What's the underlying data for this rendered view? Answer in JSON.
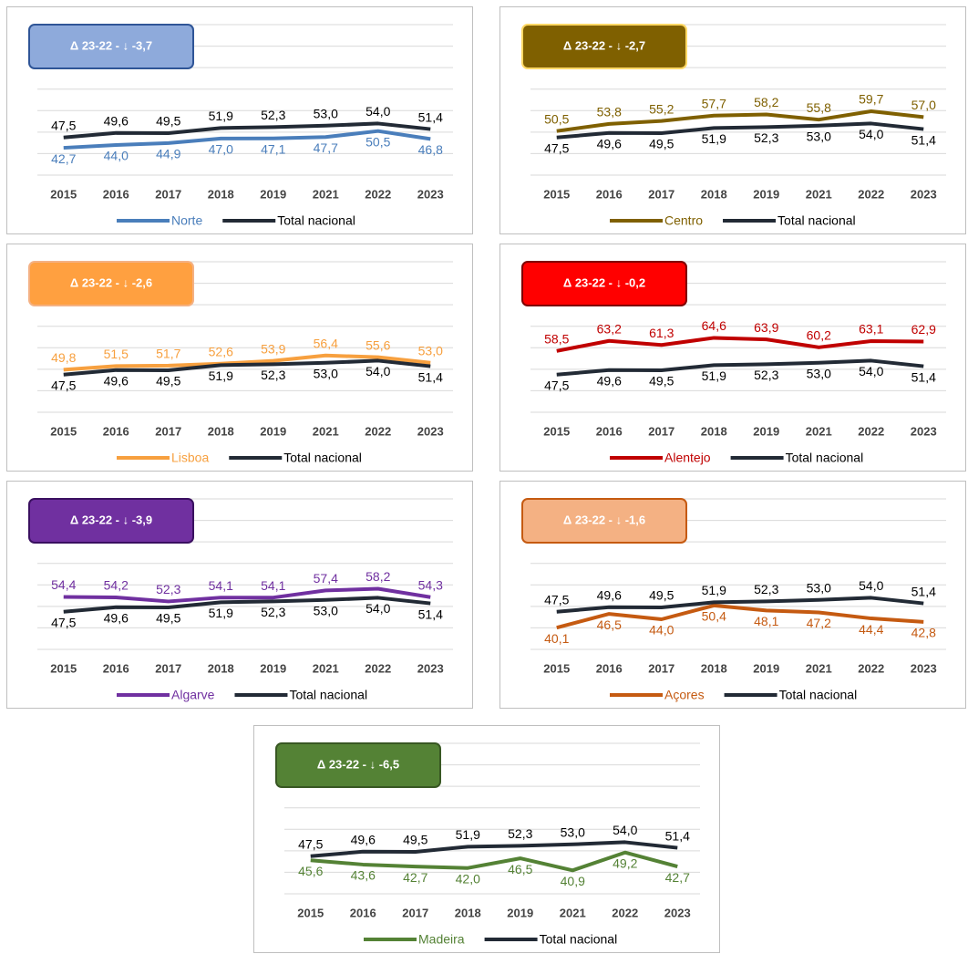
{
  "chart_data": [
    {
      "type": "line",
      "badge": "Δ 23-22 - ↓ -3,7",
      "badge_color": "#8eaadb",
      "badge_border": "#2f5597",
      "categories": [
        "2015",
        "2016",
        "2017",
        "2018",
        "2019",
        "2021",
        "2022",
        "2023"
      ],
      "series": [
        {
          "name": "Norte",
          "color": "#4a7ebb",
          "values": [
            42.7,
            44.0,
            44.9,
            47.0,
            47.1,
            47.7,
            50.5,
            46.8
          ],
          "value_labels": [
            "42,7",
            "44,0",
            "44,9",
            "47,0",
            "47,1",
            "47,7",
            "50,5",
            "46,8"
          ]
        },
        {
          "name": "Total nacional",
          "color": "#222a35",
          "values": [
            47.5,
            49.6,
            49.5,
            51.9,
            52.3,
            53.0,
            54.0,
            51.4
          ],
          "value_labels": [
            "47,5",
            "49,6",
            "49,5",
            "51,9",
            "52,3",
            "53,0",
            "54,0",
            "51,4"
          ]
        }
      ],
      "ylim": [
        30,
        100
      ],
      "yticks": [
        30,
        40,
        50,
        60,
        70,
        80,
        90,
        100
      ],
      "grid": true
    },
    {
      "type": "line",
      "badge": "Δ 23-22 - ↓ -2,7",
      "badge_color": "#7f6000",
      "badge_border": "#ffd966",
      "categories": [
        "2015",
        "2016",
        "2017",
        "2018",
        "2019",
        "2021",
        "2022",
        "2023"
      ],
      "series": [
        {
          "name": "Centro",
          "color": "#7f6000",
          "values": [
            50.5,
            53.8,
            55.2,
            57.7,
            58.2,
            55.8,
            59.7,
            57.0
          ],
          "value_labels": [
            "50,5",
            "53,8",
            "55,2",
            "57,7",
            "58,2",
            "55,8",
            "59,7",
            "57,0"
          ]
        },
        {
          "name": "Total nacional",
          "color": "#222a35",
          "values": [
            47.5,
            49.6,
            49.5,
            51.9,
            52.3,
            53.0,
            54.0,
            51.4
          ],
          "value_labels": [
            "47,5",
            "49,6",
            "49,5",
            "51,9",
            "52,3",
            "53,0",
            "54,0",
            "51,4"
          ]
        }
      ],
      "ylim": [
        30,
        100
      ],
      "yticks": [
        30,
        40,
        50,
        60,
        70,
        80,
        90,
        100
      ],
      "grid": true
    },
    {
      "type": "line",
      "badge": "Δ 23-22 - ↓ -2,6",
      "badge_color": "#ffa040",
      "badge_border": "#f4b183",
      "categories": [
        "2015",
        "2016",
        "2017",
        "2018",
        "2019",
        "2021",
        "2022",
        "2023"
      ],
      "series": [
        {
          "name": "Lisboa",
          "color": "#f7a03f",
          "values": [
            49.8,
            51.5,
            51.7,
            52.6,
            53.9,
            56.4,
            55.6,
            53.0
          ],
          "value_labels": [
            "49,8",
            "51,5",
            "51,7",
            "52,6",
            "53,9",
            "56,4",
            "55,6",
            "53,0"
          ]
        },
        {
          "name": "Total nacional",
          "color": "#222a35",
          "values": [
            47.5,
            49.6,
            49.5,
            51.9,
            52.3,
            53.0,
            54.0,
            51.4
          ],
          "value_labels": [
            "47,5",
            "49,6",
            "49,5",
            "51,9",
            "52,3",
            "53,0",
            "54,0",
            "51,4"
          ]
        }
      ],
      "ylim": [
        30,
        100
      ],
      "yticks": [
        30,
        40,
        50,
        60,
        70,
        80,
        90,
        100
      ],
      "grid": true
    },
    {
      "type": "line",
      "badge": "Δ 23-22 - ↓ -0,2",
      "badge_color": "#ff0000",
      "badge_border": "#7f0000",
      "categories": [
        "2015",
        "2016",
        "2017",
        "2018",
        "2019",
        "2021",
        "2022",
        "2023"
      ],
      "series": [
        {
          "name": "Alentejo",
          "color": "#c00000",
          "values": [
            58.5,
            63.2,
            61.3,
            64.6,
            63.9,
            60.2,
            63.1,
            62.9
          ],
          "value_labels": [
            "58,5",
            "63,2",
            "61,3",
            "64,6",
            "63,9",
            "60,2",
            "63,1",
            "62,9"
          ]
        },
        {
          "name": "Total nacional",
          "color": "#222a35",
          "values": [
            47.5,
            49.6,
            49.5,
            51.9,
            52.3,
            53.0,
            54.0,
            51.4
          ],
          "value_labels": [
            "47,5",
            "49,6",
            "49,5",
            "51,9",
            "52,3",
            "53,0",
            "54,0",
            "51,4"
          ]
        }
      ],
      "ylim": [
        30,
        100
      ],
      "yticks": [
        30,
        40,
        50,
        60,
        70,
        80,
        90,
        100
      ],
      "grid": true
    },
    {
      "type": "line",
      "badge": "Δ 23-22 - ↓ -3,9",
      "badge_color": "#7030a0",
      "badge_border": "#3a1060",
      "categories": [
        "2015",
        "2016",
        "2017",
        "2018",
        "2019",
        "2021",
        "2022",
        "2023"
      ],
      "series": [
        {
          "name": "Algarve",
          "color": "#7030a0",
          "values": [
            54.4,
            54.2,
            52.3,
            54.1,
            54.1,
            57.4,
            58.2,
            54.3
          ],
          "value_labels": [
            "54,4",
            "54,2",
            "52,3",
            "54,1",
            "54,1",
            "57,4",
            "58,2",
            "54,3"
          ]
        },
        {
          "name": "Total nacional",
          "color": "#222a35",
          "values": [
            47.5,
            49.6,
            49.5,
            51.9,
            52.3,
            53.0,
            54.0,
            51.4
          ],
          "value_labels": [
            "47,5",
            "49,6",
            "49,5",
            "51,9",
            "52,3",
            "53,0",
            "54,0",
            "51,4"
          ]
        }
      ],
      "ylim": [
        30,
        100
      ],
      "yticks": [
        30,
        40,
        50,
        60,
        70,
        80,
        90,
        100
      ],
      "grid": true
    },
    {
      "type": "line",
      "badge": "Δ 23-22 - ↓ -1,6",
      "badge_color": "#f4b183",
      "badge_border": "#c55a11",
      "categories": [
        "2015",
        "2016",
        "2017",
        "2018",
        "2019",
        "2021",
        "2022",
        "2023"
      ],
      "series": [
        {
          "name": "Açores",
          "color": "#c55a11",
          "values": [
            40.1,
            46.5,
            44.0,
            50.4,
            48.1,
            47.2,
            44.4,
            42.8
          ],
          "value_labels": [
            "40,1",
            "46,5",
            "44,0",
            "50,4",
            "48,1",
            "47,2",
            "44,4",
            "42,8"
          ]
        },
        {
          "name": "Total nacional",
          "color": "#222a35",
          "values": [
            47.5,
            49.6,
            49.5,
            51.9,
            52.3,
            53.0,
            54.0,
            51.4
          ],
          "value_labels": [
            "47,5",
            "49,6",
            "49,5",
            "51,9",
            "52,3",
            "53,0",
            "54,0",
            "51,4"
          ]
        }
      ],
      "ylim": [
        30,
        100
      ],
      "yticks": [
        30,
        40,
        50,
        60,
        70,
        80,
        90,
        100
      ],
      "grid": true
    },
    {
      "type": "line",
      "badge": "Δ 23-22 - ↓ -6,5",
      "badge_color": "#548235",
      "badge_border": "#385723",
      "categories": [
        "2015",
        "2016",
        "2017",
        "2018",
        "2019",
        "2021",
        "2022",
        "2023"
      ],
      "series": [
        {
          "name": "Madeira",
          "color": "#548235",
          "values": [
            45.6,
            43.6,
            42.7,
            42.0,
            46.5,
            40.9,
            49.2,
            42.7
          ],
          "value_labels": [
            "45,6",
            "43,6",
            "42,7",
            "42,0",
            "46,5",
            "40,9",
            "49,2",
            "42,7"
          ]
        },
        {
          "name": "Total nacional",
          "color": "#222a35",
          "values": [
            47.5,
            49.6,
            49.5,
            51.9,
            52.3,
            53.0,
            54.0,
            51.4
          ],
          "value_labels": [
            "47,5",
            "49,6",
            "49,5",
            "51,9",
            "52,3",
            "53,0",
            "54,0",
            "51,4"
          ]
        }
      ],
      "ylim": [
        30,
        100
      ],
      "yticks": [
        30,
        40,
        50,
        60,
        70,
        80,
        90,
        100
      ],
      "grid": true
    }
  ]
}
